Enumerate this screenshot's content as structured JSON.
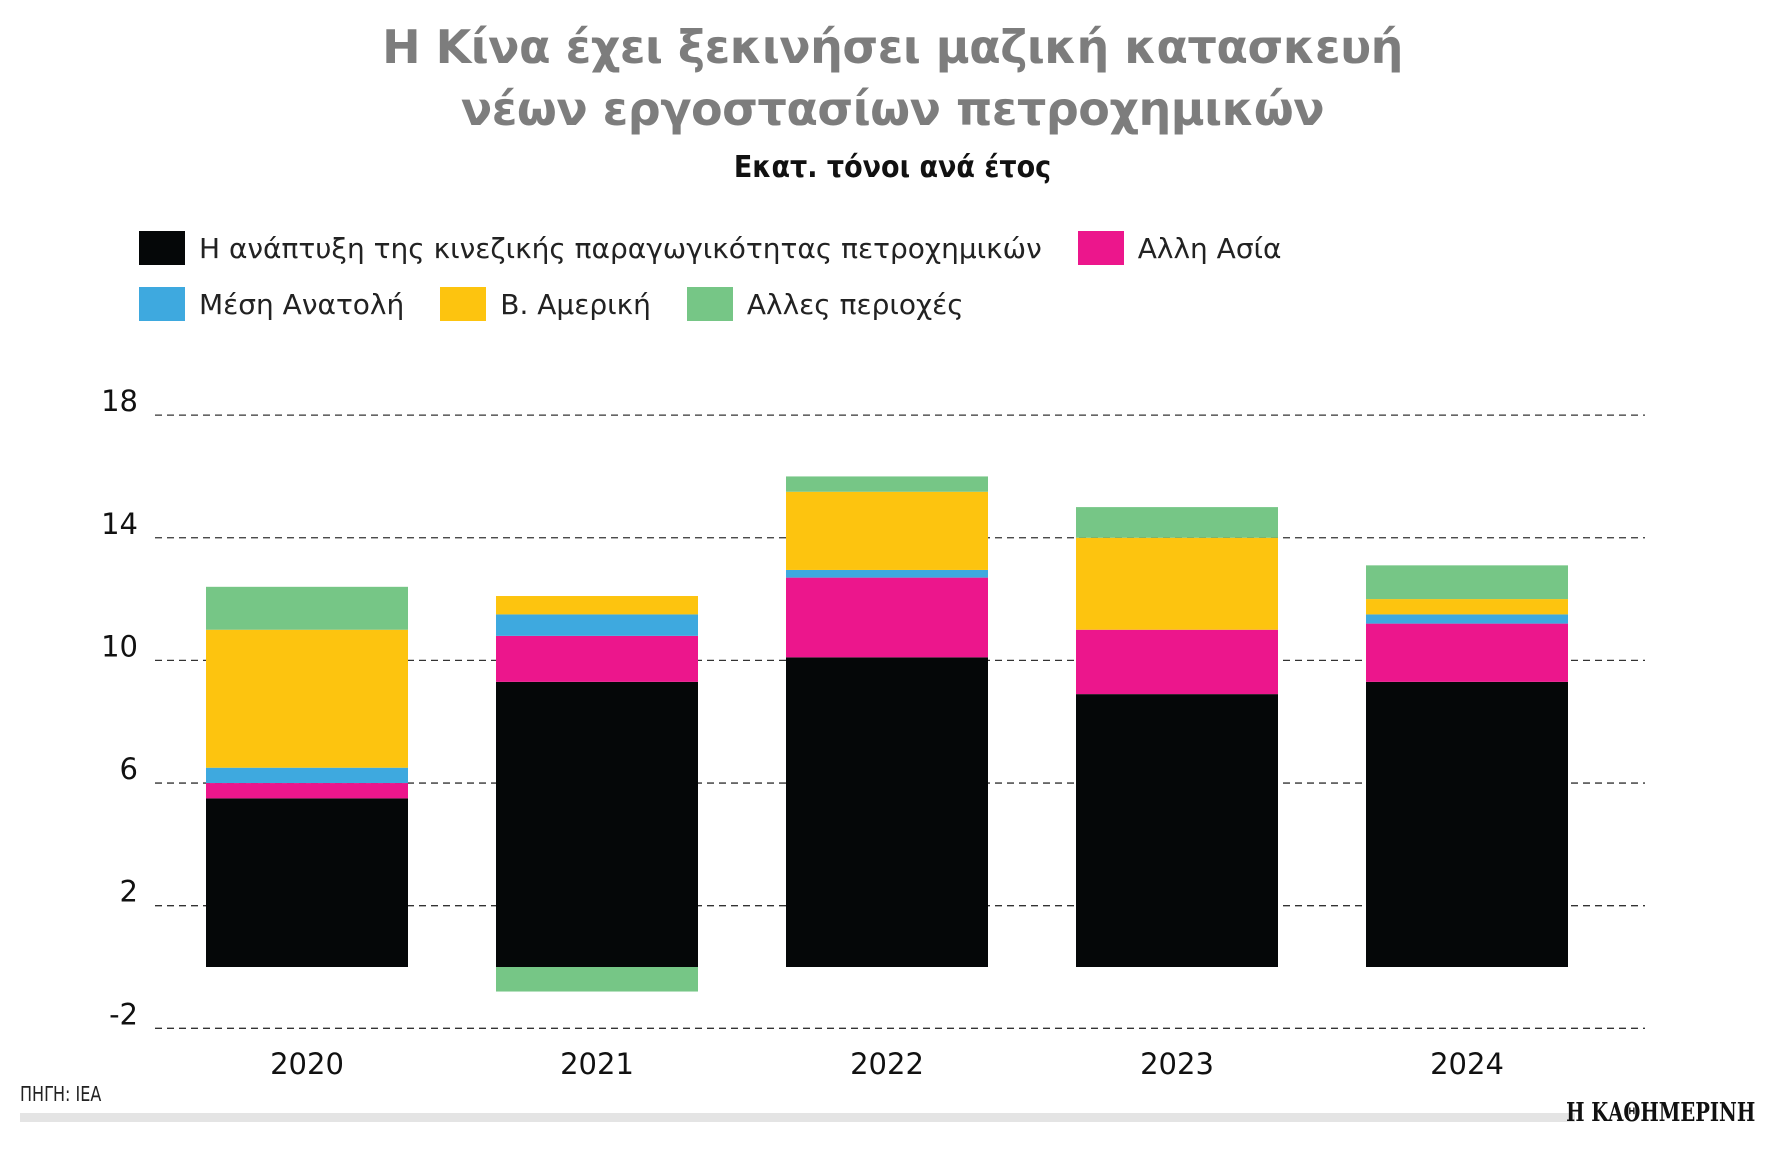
{
  "chart_data": {
    "type": "bar",
    "stacked": true,
    "title": "Η Κίνα έχει ξεκινήσει μαζική κατασκευή νέων εργοστασίων πετροχημικών",
    "title_lines": [
      "Η Κίνα έχει ξεκινήσει μαζική κατασκευή",
      "νέων εργοστασίων πετροχημικών"
    ],
    "subtitle": "Εκατ. τόνοι ανά έτος",
    "xlabel": "",
    "ylabel": "",
    "ylim": [
      -2,
      18
    ],
    "yticks": [
      "18",
      "14",
      "10",
      "6",
      "2",
      "-2"
    ],
    "ytick_values": [
      18,
      14,
      10,
      6,
      2,
      -2
    ],
    "grid": "horizontal dashed",
    "legend_position": "top-left",
    "categories": [
      "2020",
      "2021",
      "2022",
      "2023",
      "2024"
    ],
    "series": [
      {
        "name": "Η ανάπτυξη της κινεζικής παραγωγικότητας πετροχημικών",
        "color": "#050708",
        "values": [
          5.5,
          9.3,
          10.1,
          8.9,
          9.3
        ]
      },
      {
        "name": "Αλλη Ασία",
        "color": "#ec168c",
        "values": [
          0.5,
          1.5,
          2.6,
          2.1,
          1.9
        ]
      },
      {
        "name": "Μέση Ανατολή",
        "color": "#3ea9df",
        "values": [
          0.5,
          0.7,
          0.25,
          0.0,
          0.3
        ]
      },
      {
        "name": "Β. Αμερική",
        "color": "#fdc40f",
        "values": [
          4.5,
          0.6,
          2.55,
          3.0,
          0.5
        ]
      },
      {
        "name": "Αλλες περιοχές",
        "color": "#76c686",
        "values": [
          1.4,
          -0.8,
          0.5,
          1.0,
          1.1
        ]
      }
    ]
  },
  "legend_rows": [
    [
      0,
      1
    ],
    [
      2,
      3,
      4
    ]
  ],
  "footer": {
    "source": "ΠΗΓΗ: IEA",
    "logo": "Η ΚΑΘΗΜΕΡΙΝΗ"
  }
}
